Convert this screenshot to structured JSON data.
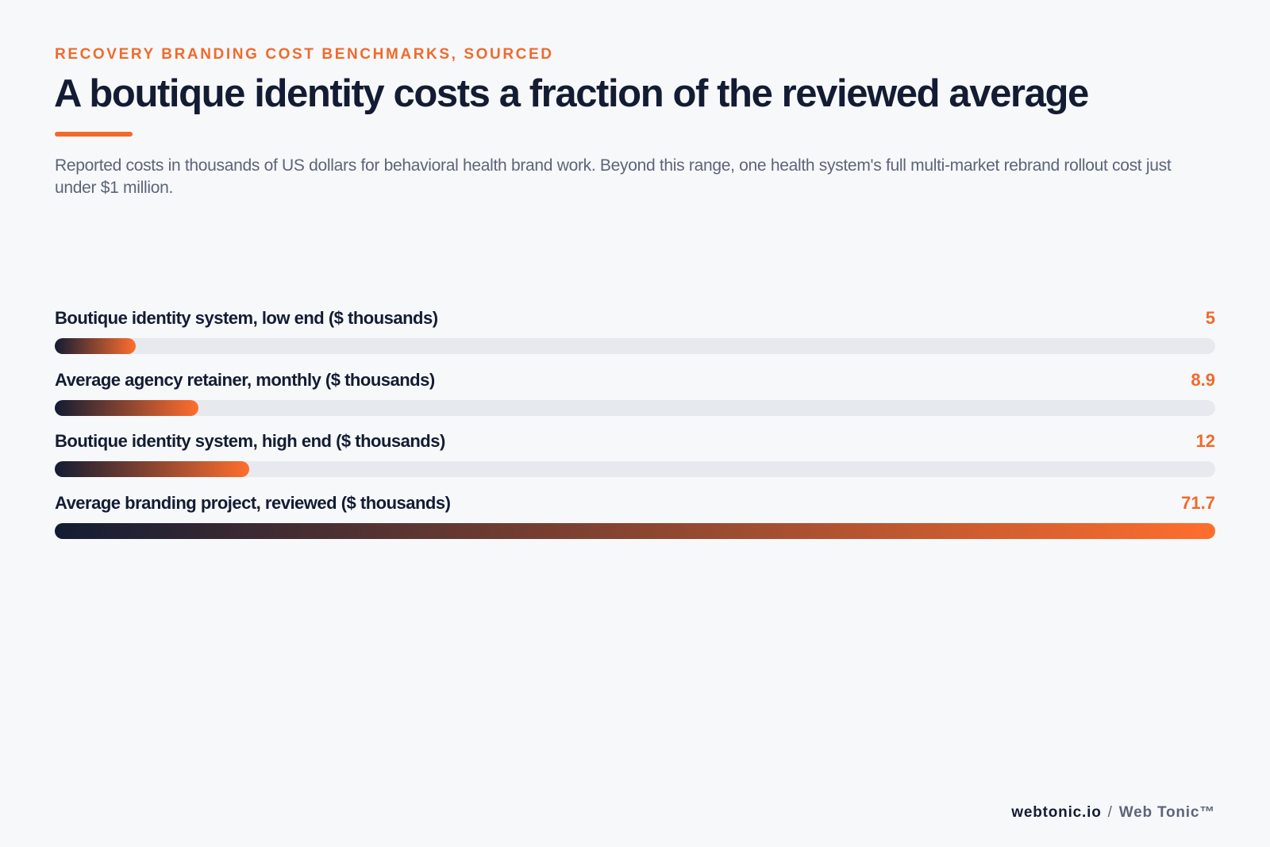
{
  "header": {
    "eyebrow": "RECOVERY BRANDING COST BENCHMARKS, SOURCED",
    "title": "A boutique identity costs a fraction of the reviewed average",
    "subtitle": "Reported costs in thousands of US dollars for behavioral health brand work. Beyond this range, one health system's full multi-market rebrand rollout cost just under $1 million."
  },
  "colors": {
    "accent": "#f06a2c",
    "ink": "#131c33",
    "muted": "#5c6478",
    "track": "#e6e9ee",
    "background": "#f7f8fa"
  },
  "chart_data": {
    "type": "bar",
    "orientation": "horizontal",
    "categories": [
      "Boutique identity system, low end ($ thousands)",
      "Average agency retainer, monthly ($ thousands)",
      "Boutique identity system, high end ($ thousands)",
      "Average branding project, reviewed ($ thousands)"
    ],
    "values": [
      5,
      8.9,
      12,
      71.7
    ],
    "value_labels": [
      "5",
      "8.9",
      "12",
      "71.7"
    ],
    "xlim": [
      0,
      71.7
    ],
    "grid": false,
    "legend": "none"
  },
  "footer": {
    "site": "webtonic.io",
    "separator": "/",
    "brand": "Web Tonic™"
  }
}
